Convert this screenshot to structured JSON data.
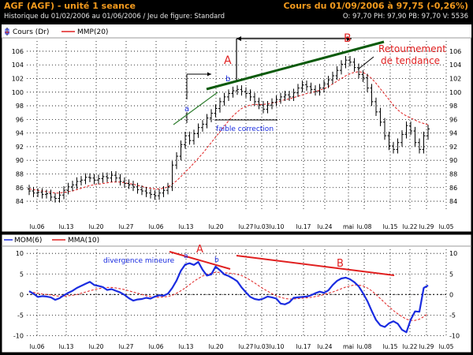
{
  "header": {
    "title": "AGF (AGF) - unité 1 seance",
    "quote": "Cours du 01/09/2006 à 97,75 (-0,26%)",
    "history": "Historique du 01/02/2006 au 01/06/2006 / Jeu de figure: Standard",
    "ohlc": "O: 97,70  PH: 97,90  PB: 97,70  V: 5536"
  },
  "colors": {
    "panel_bg": "#ffffff",
    "frame": "#000000",
    "price_bars": "#000000",
    "mmp": "#e02020",
    "mom": "#1a2ce0",
    "mma": "#e02020",
    "trend_line": "#0a5a0a",
    "annot_red": "#e02020",
    "annot_blue": "#1a2ce0"
  },
  "chart_data": [
    {
      "type": "ohlc",
      "legend": [
        {
          "name": "Cours (Dr)",
          "icon": "candlestick-icon"
        },
        {
          "name": "MMP(20)",
          "color": "#e02020"
        }
      ],
      "x_tick_labels": [
        "lu.06",
        "lu.13",
        "lu.20",
        "lu.27",
        "lu.06",
        "lu.13",
        "lu.20",
        "lu.27",
        "lu.03",
        "lu.10",
        "lu.17",
        "lu.24",
        "mai",
        "lu.08",
        "lu.15",
        "lu.22",
        "lu.29",
        "lu.05"
      ],
      "y_ticks": [
        84,
        86,
        88,
        90,
        92,
        94,
        96,
        98,
        100,
        102,
        104,
        106
      ],
      "ylim": [
        82.5,
        107.5
      ],
      "close": [
        85.5,
        85.2,
        85.3,
        85.0,
        85.1,
        84.6,
        84.4,
        84.9,
        85.6,
        86.1,
        86.4,
        86.9,
        87.1,
        87.5,
        87.4,
        87.1,
        87.3,
        87.6,
        87.4,
        87.8,
        87.4,
        86.9,
        86.6,
        86.4,
        86.1,
        85.7,
        85.5,
        85.2,
        85.0,
        84.8,
        85.2,
        85.6,
        86.1,
        89.3,
        90.6,
        92.3,
        93.6,
        92.9,
        93.9,
        94.8,
        95.3,
        96.2,
        96.9,
        97.6,
        98.6,
        99.3,
        99.8,
        100.2,
        100.4,
        100.1,
        99.8,
        99.3,
        98.6,
        98.1,
        97.5,
        98.1,
        98.5,
        98.9,
        99.3,
        99.6,
        99.3,
        99.9,
        100.6,
        101.1,
        100.8,
        100.4,
        100.1,
        100.6,
        101.2,
        101.8,
        102.4,
        103.2,
        104.1,
        104.7,
        104.4,
        103.6,
        102.6,
        102.1,
        100.6,
        98.6,
        97.1,
        95.6,
        93.6,
        92.1,
        91.6,
        92.6,
        93.8,
        95.1,
        94.3,
        92.6,
        91.6,
        93.6,
        94.6
      ],
      "mmp20": [
        85.8,
        85.7,
        85.6,
        85.5,
        85.4,
        85.3,
        85.2,
        85.2,
        85.3,
        85.4,
        85.5,
        85.7,
        85.9,
        86.1,
        86.3,
        86.4,
        86.5,
        86.6,
        86.7,
        86.8,
        86.8,
        86.8,
        86.7,
        86.6,
        86.5,
        86.3,
        86.2,
        86.0,
        85.9,
        85.8,
        85.8,
        85.9,
        86.1,
        86.5,
        87.0,
        87.6,
        88.3,
        88.9,
        89.6,
        90.3,
        91.0,
        91.8,
        92.6,
        93.4,
        94.2,
        95.0,
        95.8,
        96.5,
        97.1,
        97.6,
        97.9,
        98.1,
        98.2,
        98.2,
        98.2,
        98.3,
        98.4,
        98.5,
        98.7,
        98.9,
        99.0,
        99.2,
        99.4,
        99.6,
        99.8,
        99.9,
        100.1,
        100.3,
        100.5,
        100.8,
        101.2,
        101.6,
        102.0,
        102.4,
        102.7,
        102.9,
        103.0,
        102.9,
        102.5,
        102.0,
        101.3,
        100.5,
        99.7,
        98.9,
        98.1,
        97.4,
        96.9,
        96.5,
        96.2,
        95.9,
        95.6,
        95.4,
        95.2
      ]
    },
    {
      "type": "line",
      "legend": [
        {
          "name": "MOM(6)",
          "color": "#1a2ce0"
        },
        {
          "name": "MMA(10)",
          "color": "#e02020"
        }
      ],
      "x_tick_labels": [
        "lu.06",
        "lu.13",
        "lu.20",
        "lu.27",
        "lu.06",
        "lu.13",
        "lu.20",
        "lu.27",
        "lu.03",
        "lu.10",
        "lu.17",
        "lu.24",
        "mai",
        "lu.08",
        "lu.15",
        "lu.22",
        "lu.29",
        "lu.05"
      ],
      "y_ticks": [
        -10,
        -5,
        0,
        5,
        10
      ],
      "ylim": [
        -10.5,
        11
      ],
      "series": [
        {
          "name": "MOM(6)",
          "values": [
            0.8,
            0.2,
            -0.6,
            -0.4,
            -0.5,
            -0.7,
            -1.3,
            -0.9,
            -0.2,
            0.4,
            0.9,
            1.6,
            2.1,
            2.6,
            3.1,
            2.3,
            2.1,
            1.8,
            1.1,
            1.3,
            0.9,
            0.5,
            -0.1,
            -0.9,
            -1.5,
            -1.2,
            -1.1,
            -0.8,
            -1.0,
            -0.5,
            -0.2,
            -0.3,
            0.2,
            1.6,
            3.4,
            5.8,
            7.3,
            7.6,
            7.2,
            7.9,
            6.0,
            4.6,
            4.9,
            6.8,
            5.9,
            4.9,
            4.5,
            3.9,
            3.2,
            1.7,
            0.5,
            -0.6,
            -1.1,
            -1.3,
            -1.0,
            -0.5,
            -0.7,
            -1.0,
            -2.2,
            -2.4,
            -1.9,
            -0.8,
            -0.7,
            -0.6,
            -0.5,
            -0.2,
            0.3,
            0.7,
            0.4,
            1.0,
            2.3,
            3.3,
            3.9,
            4.1,
            3.7,
            3.0,
            2.0,
            0.3,
            -1.6,
            -4.0,
            -6.2,
            -7.5,
            -7.9,
            -7.0,
            -6.5,
            -7.1,
            -8.6,
            -9.2,
            -6.1,
            -4.1,
            -4.2,
            1.6,
            2.2
          ]
        },
        {
          "name": "MMA(10)",
          "values": [
            0.6,
            0.5,
            0.3,
            0.1,
            0.0,
            -0.1,
            -0.3,
            -0.4,
            -0.4,
            -0.3,
            -0.2,
            0.0,
            0.3,
            0.6,
            0.9,
            1.2,
            1.4,
            1.6,
            1.7,
            1.7,
            1.6,
            1.4,
            1.2,
            0.9,
            0.6,
            0.3,
            0.0,
            -0.3,
            -0.5,
            -0.7,
            -0.7,
            -0.6,
            -0.5,
            -0.2,
            0.3,
            0.9,
            1.6,
            2.4,
            3.2,
            3.9,
            4.5,
            4.9,
            5.2,
            5.4,
            5.4,
            5.3,
            5.2,
            5.1,
            4.9,
            4.6,
            4.1,
            3.5,
            2.8,
            2.1,
            1.4,
            0.8,
            0.2,
            -0.3,
            -0.7,
            -1.0,
            -1.1,
            -1.1,
            -1.0,
            -0.9,
            -0.8,
            -0.7,
            -0.5,
            -0.3,
            0.0,
            0.3,
            0.6,
            1.0,
            1.4,
            1.8,
            2.1,
            2.3,
            2.3,
            2.1,
            1.6,
            0.9,
            0.0,
            -1.0,
            -2.0,
            -3.0,
            -3.9,
            -4.7,
            -5.4,
            -6.0,
            -6.3,
            -6.3,
            -6.0,
            -5.4,
            -4.6
          ]
        }
      ]
    }
  ],
  "annotations": {
    "top": {
      "A": "A",
      "B": "B",
      "a": "a",
      "b": "b",
      "reversal_line1": "Retournement",
      "reversal_line2": "de tendance",
      "weak_correction": "faible correction"
    },
    "bottom": {
      "A": "A",
      "B": "B",
      "a": "a",
      "b": "b",
      "divergence": "divergence mineure"
    }
  }
}
